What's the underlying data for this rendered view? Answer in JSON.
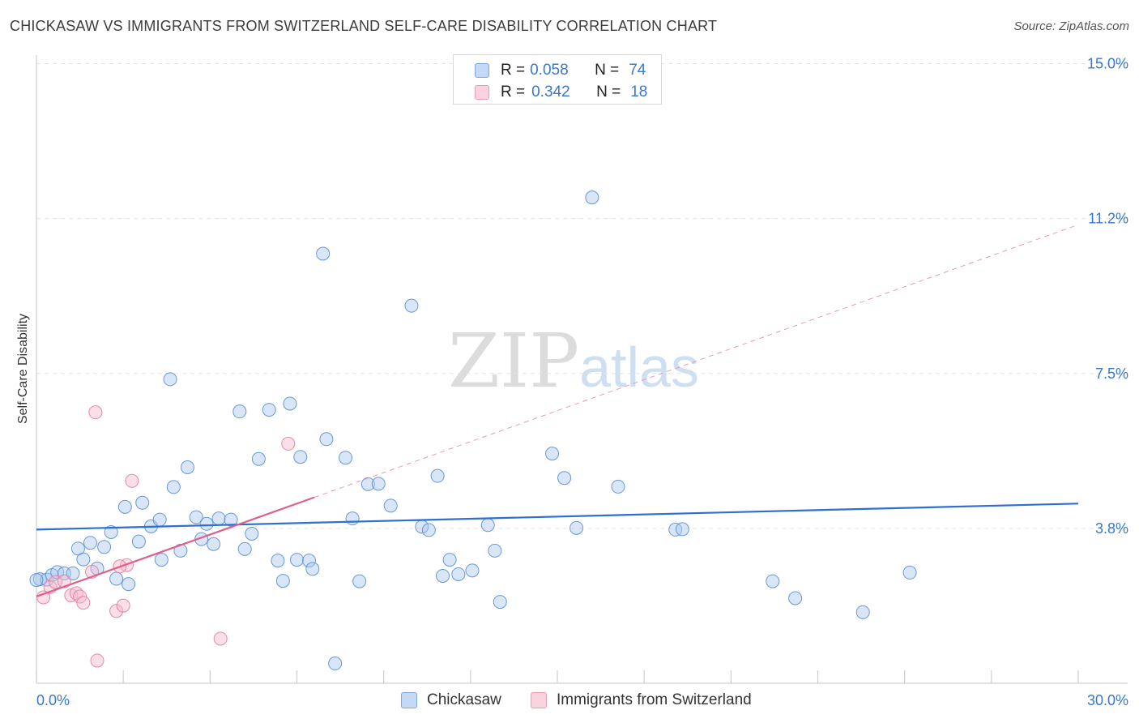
{
  "title": "CHICKASAW VS IMMIGRANTS FROM SWITZERLAND SELF-CARE DISABILITY CORRELATION CHART",
  "source": "Source: ZipAtlas.com",
  "watermark": {
    "zip": "ZIP",
    "atlas": "atlas"
  },
  "legend": {
    "rows": [
      {
        "r_label": "R =",
        "r_value": "0.058",
        "n_label": "N =",
        "n_value": "74",
        "color": "#a8c8f0"
      },
      {
        "r_label": "R =",
        "r_value": "0.342",
        "n_label": "N =",
        "n_value": "18",
        "color": "#f7b8cb"
      }
    ]
  },
  "chart_data": {
    "type": "scatter",
    "title": "CHICKASAW VS IMMIGRANTS FROM SWITZERLAND SELF-CARE DISABILITY CORRELATION CHART",
    "xlabel": "",
    "ylabel": "Self-Care Disability",
    "xlim": [
      0,
      30
    ],
    "ylim": [
      0,
      15
    ],
    "x_tick_labels": [
      "0.0%",
      "30.0%"
    ],
    "y_ticks": [
      {
        "value": 3.75,
        "label": "3.8%"
      },
      {
        "value": 7.5,
        "label": "7.5%"
      },
      {
        "value": 11.25,
        "label": "11.2%"
      },
      {
        "value": 15.0,
        "label": "15.0%"
      }
    ],
    "series": [
      {
        "name": "Chickasaw",
        "color": "#a8c8f0",
        "edge": "#5a8fd0",
        "trend": {
          "x": [
            0,
            30
          ],
          "y": [
            3.72,
            4.35
          ],
          "color": "#2f6fce",
          "dashed_extension": false
        },
        "points": [
          [
            0.1,
            2.52
          ],
          [
            0.3,
            2.51
          ],
          [
            0.45,
            2.62
          ],
          [
            0.6,
            2.69
          ],
          [
            0.8,
            2.66
          ],
          [
            1.05,
            2.66
          ],
          [
            1.2,
            3.26
          ],
          [
            1.35,
            3.0
          ],
          [
            1.55,
            3.4
          ],
          [
            1.75,
            2.78
          ],
          [
            1.95,
            3.3
          ],
          [
            2.15,
            3.66
          ],
          [
            2.3,
            2.53
          ],
          [
            2.55,
            4.27
          ],
          [
            2.65,
            2.4
          ],
          [
            2.95,
            3.43
          ],
          [
            3.05,
            4.37
          ],
          [
            3.3,
            3.8
          ],
          [
            3.55,
            3.96
          ],
          [
            3.6,
            2.99
          ],
          [
            3.85,
            7.36
          ],
          [
            3.95,
            4.75
          ],
          [
            4.15,
            3.21
          ],
          [
            4.35,
            5.23
          ],
          [
            4.6,
            4.02
          ],
          [
            4.75,
            3.49
          ],
          [
            4.9,
            3.86
          ],
          [
            5.1,
            3.37
          ],
          [
            5.25,
            3.99
          ],
          [
            5.6,
            3.96
          ],
          [
            5.85,
            6.58
          ],
          [
            6.0,
            3.25
          ],
          [
            6.2,
            3.62
          ],
          [
            6.4,
            5.43
          ],
          [
            6.7,
            6.62
          ],
          [
            6.95,
            2.97
          ],
          [
            7.1,
            2.48
          ],
          [
            7.3,
            6.77
          ],
          [
            7.5,
            2.99
          ],
          [
            7.6,
            5.48
          ],
          [
            7.85,
            2.97
          ],
          [
            7.95,
            2.77
          ],
          [
            8.25,
            10.4
          ],
          [
            8.35,
            5.91
          ],
          [
            8.6,
            0.48
          ],
          [
            8.9,
            5.46
          ],
          [
            9.1,
            3.99
          ],
          [
            9.3,
            2.47
          ],
          [
            9.55,
            4.82
          ],
          [
            9.85,
            4.83
          ],
          [
            10.2,
            4.3
          ],
          [
            10.8,
            9.14
          ],
          [
            11.1,
            3.79
          ],
          [
            11.3,
            3.71
          ],
          [
            11.55,
            5.02
          ],
          [
            11.7,
            2.6
          ],
          [
            11.9,
            2.99
          ],
          [
            12.15,
            2.64
          ],
          [
            12.55,
            2.73
          ],
          [
            13.0,
            3.83
          ],
          [
            13.2,
            3.21
          ],
          [
            13.35,
            1.97
          ],
          [
            14.85,
            5.56
          ],
          [
            15.2,
            4.97
          ],
          [
            15.55,
            3.76
          ],
          [
            16.0,
            11.76
          ],
          [
            16.75,
            4.76
          ],
          [
            18.4,
            3.72
          ],
          [
            18.6,
            3.73
          ],
          [
            21.2,
            2.47
          ],
          [
            21.85,
            2.06
          ],
          [
            23.8,
            1.72
          ],
          [
            25.15,
            2.68
          ],
          [
            0.0,
            2.5
          ]
        ]
      },
      {
        "name": "Immigrants from Switzerland",
        "color": "#f7b8cb",
        "edge": "#e07ea0",
        "trend": {
          "x": [
            0,
            8.0,
            30
          ],
          "y": [
            2.1,
            4.5,
            11.1
          ],
          "color": "#e0608a",
          "dashed_extension": true
        },
        "points": [
          [
            0.2,
            2.08
          ],
          [
            0.4,
            2.33
          ],
          [
            0.55,
            2.45
          ],
          [
            0.8,
            2.47
          ],
          [
            1.0,
            2.13
          ],
          [
            1.15,
            2.18
          ],
          [
            1.25,
            2.1
          ],
          [
            1.35,
            1.95
          ],
          [
            1.6,
            2.7
          ],
          [
            1.7,
            6.56
          ],
          [
            1.75,
            0.55
          ],
          [
            2.3,
            1.75
          ],
          [
            2.5,
            1.88
          ],
          [
            2.6,
            2.86
          ],
          [
            2.75,
            4.9
          ],
          [
            5.3,
            1.08
          ],
          [
            7.25,
            5.8
          ],
          [
            2.4,
            2.83
          ]
        ]
      }
    ]
  },
  "bottom_legend": [
    {
      "label": "Chickasaw",
      "color": "#a8c8f0"
    },
    {
      "label": "Immigrants from Switzerland",
      "color": "#f7b8cb"
    }
  ]
}
